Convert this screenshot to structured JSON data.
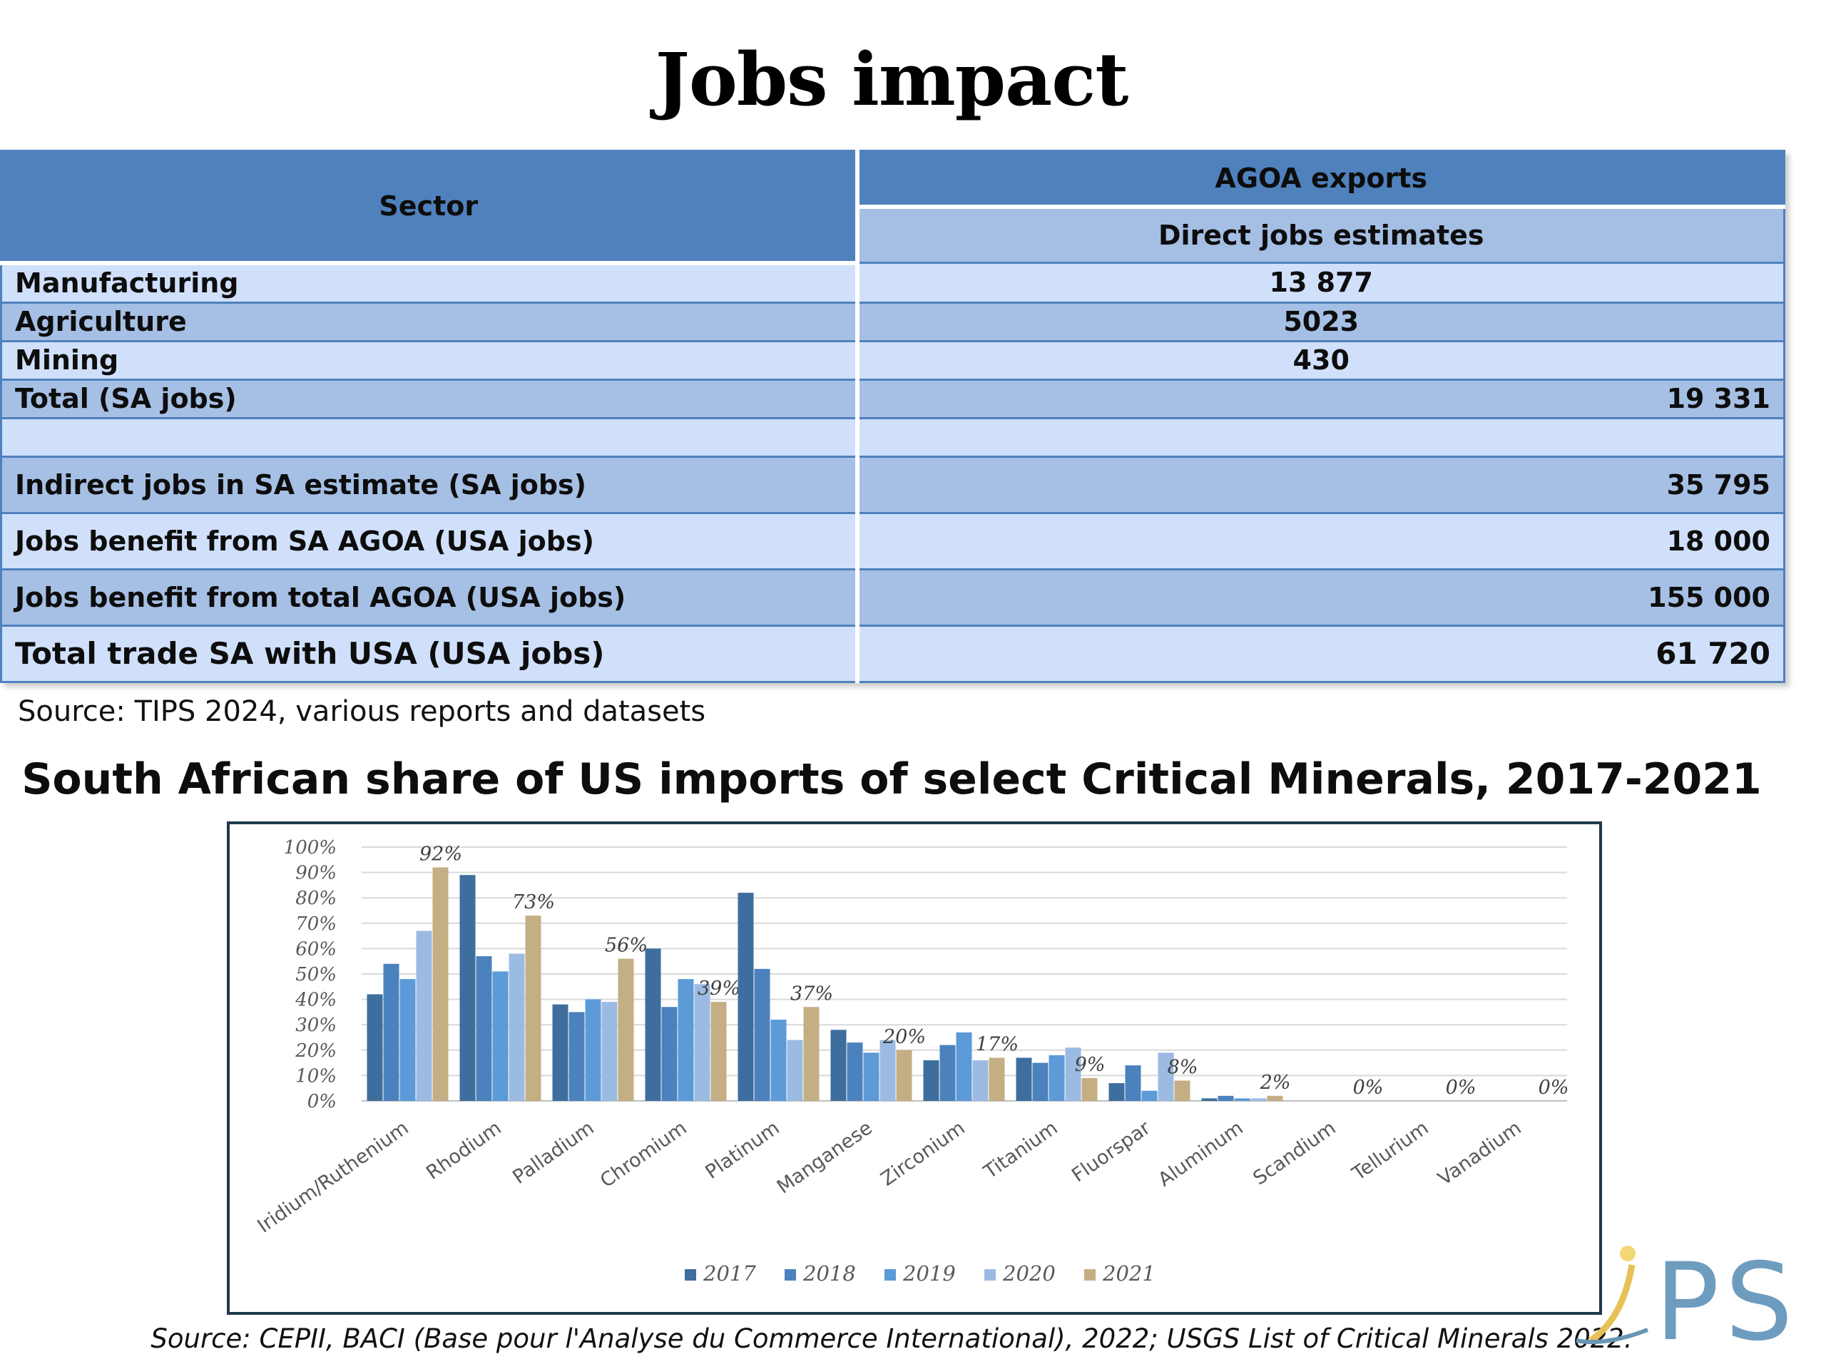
{
  "slide": {
    "title": "Jobs impact"
  },
  "jobs_table": {
    "header": {
      "sector": "Sector",
      "agoa_exports": "AGOA exports",
      "direct_jobs": "Direct jobs estimates"
    },
    "rows": [
      {
        "label": "Manufacturing",
        "value": "13 877"
      },
      {
        "label": "Agriculture",
        "value": "5023"
      },
      {
        "label": "Mining",
        "value": "430"
      },
      {
        "label": "Total (SA jobs)",
        "value": "19 331"
      },
      {
        "label": "",
        "value": ""
      },
      {
        "label": "Indirect jobs in SA estimate (SA jobs)",
        "value": "35 795"
      },
      {
        "label": "Jobs benefit from SA AGOA (USA jobs)",
        "value": "18 000"
      },
      {
        "label": "Jobs benefit from total AGOA (USA jobs)",
        "value": "155 000"
      },
      {
        "label": "Total trade SA with USA (USA jobs)",
        "value": "61 720"
      }
    ],
    "source": "Source: TIPS 2024, various reports and datasets"
  },
  "chart_title": "South African share of US imports of select Critical Minerals, 2017-2021",
  "chart_data": {
    "type": "bar",
    "title": "South African share of US imports of select Critical Minerals, 2017-2021",
    "categories": [
      "Iridium/Ruthenium",
      "Rhodium",
      "Palladium",
      "Chromium",
      "Platinum",
      "Manganese",
      "Zirconium",
      "Titanium",
      "Fluorspar",
      "Aluminum",
      "Scandium",
      "Tellurium",
      "Vanadium"
    ],
    "series": [
      {
        "name": "2017",
        "color": "#3e6e9e",
        "values": [
          42,
          89,
          38,
          60,
          82,
          28,
          16,
          17,
          7,
          1,
          0,
          0,
          0
        ]
      },
      {
        "name": "2018",
        "color": "#4b82bd",
        "values": [
          54,
          57,
          35,
          37,
          52,
          23,
          22,
          15,
          14,
          2,
          0,
          0,
          0
        ]
      },
      {
        "name": "2019",
        "color": "#5c9ad8",
        "values": [
          48,
          51,
          40,
          48,
          32,
          19,
          27,
          18,
          4,
          1,
          0,
          0,
          0
        ]
      },
      {
        "name": "2020",
        "color": "#9cbbe2",
        "values": [
          67,
          58,
          39,
          46,
          24,
          24,
          16,
          21,
          19,
          1,
          0,
          0,
          0
        ]
      },
      {
        "name": "2021",
        "color": "#c4ae84",
        "values": [
          92,
          73,
          56,
          39,
          37,
          20,
          17,
          9,
          8,
          2,
          0,
          0,
          0
        ]
      }
    ],
    "data_labels": [
      "92%",
      "73%",
      "56%",
      "39%",
      "37%",
      "20%",
      "17%",
      "9%",
      "8%",
      "2%",
      "0%",
      "0%",
      "0%"
    ],
    "y_ticks": [
      "0%",
      "10%",
      "20%",
      "30%",
      "40%",
      "50%",
      "60%",
      "70%",
      "80%",
      "90%",
      "100%"
    ],
    "ylim": [
      0,
      100
    ],
    "xlabel": "",
    "ylabel": "",
    "legend_position": "bottom",
    "grid": true
  },
  "chart_source": "Source: CEPII, BACI (Base pour l'Analyse du Commerce International), 2022; USGS List of Critical Minerals 2022.",
  "logo": {
    "text": "PS"
  }
}
